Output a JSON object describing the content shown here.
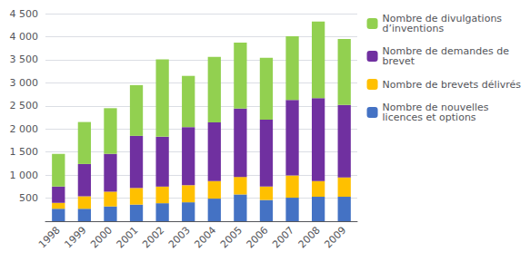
{
  "chart_data": {
    "type": "bar",
    "stacked": true,
    "categories": [
      "1998",
      "1999",
      "2000",
      "2001",
      "2002",
      "2003",
      "2004",
      "2005",
      "2006",
      "2007",
      "2008",
      "2009"
    ],
    "series": [
      {
        "name": "Nombre de nouvelles\nlicences et options",
        "color": "#4472C4",
        "values": [
          270,
          270,
          320,
          360,
          390,
          410,
          490,
          580,
          460,
          510,
          530,
          530
        ]
      },
      {
        "name": "Nombre de brevets délivrés",
        "color": "#FFC000",
        "values": [
          130,
          270,
          320,
          360,
          360,
          370,
          380,
          380,
          290,
          480,
          340,
          420
        ]
      },
      {
        "name": "Nombre de demandes de\nbrevet",
        "color": "#7030A0",
        "values": [
          350,
          700,
          820,
          1130,
          1080,
          1260,
          1270,
          1480,
          1450,
          1640,
          1800,
          1570
        ]
      },
      {
        "name": "Nombre de divulgations\nd’inventions",
        "color": "#92D050",
        "values": [
          710,
          910,
          990,
          1100,
          1680,
          1110,
          1420,
          1430,
          1340,
          1380,
          1660,
          1430
        ]
      }
    ],
    "ylim": [
      0,
      4500
    ],
    "yticks": [
      {
        "value": 0,
        "label": ""
      },
      500,
      {
        "value": 1000,
        "label": "1 000"
      },
      {
        "value": 1500,
        "label": "1 500"
      },
      {
        "value": 2000,
        "label": "2 000"
      },
      {
        "value": 2500,
        "label": "2 500"
      },
      {
        "value": 3000,
        "label": "3 000"
      },
      {
        "value": 3500,
        "label": "3 500"
      },
      {
        "value": 4000,
        "label": "4 000"
      },
      {
        "value": 4500,
        "label": "4 500"
      }
    ],
    "grid": true,
    "legend": "right"
  }
}
